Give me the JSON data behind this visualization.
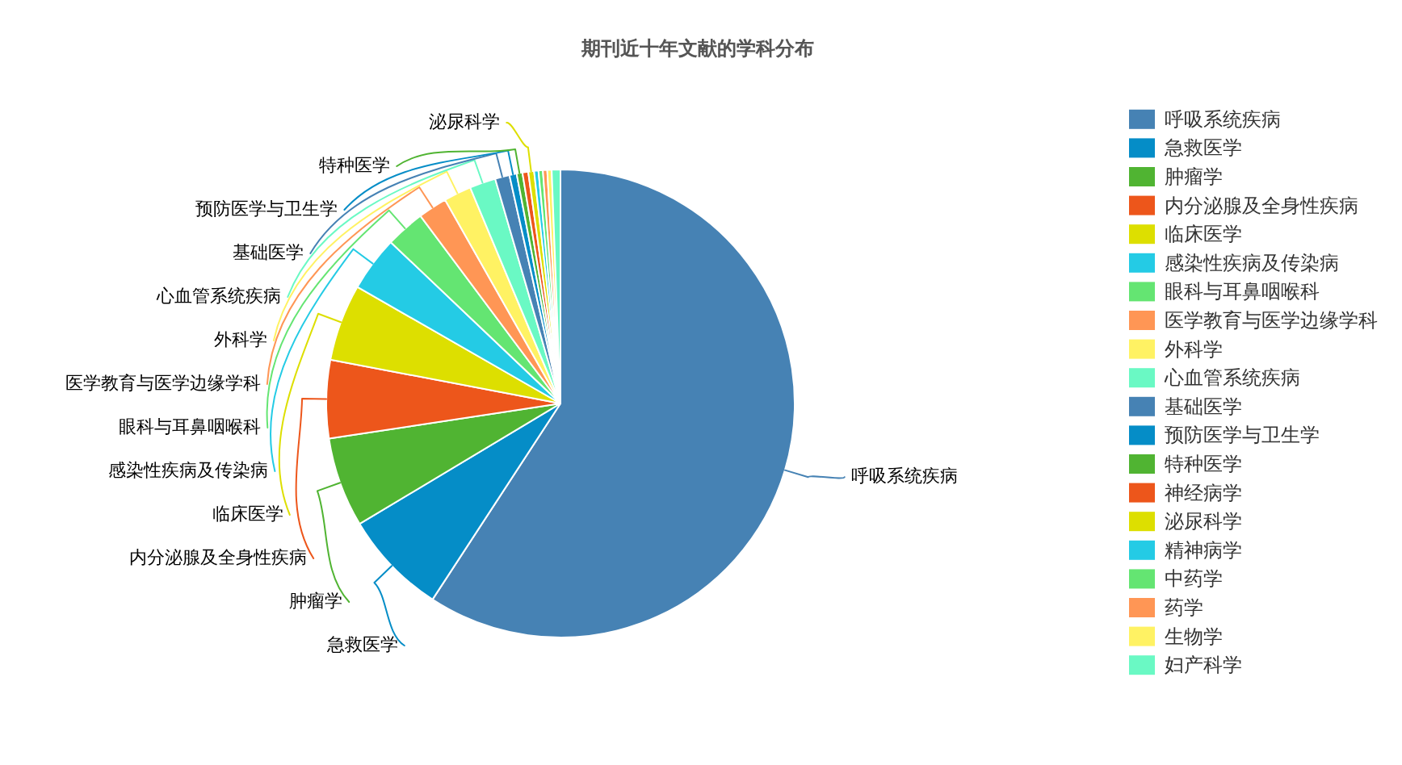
{
  "chart_data": {
    "type": "pie",
    "title": "期刊近十年文献的学科分布",
    "categories": [
      "呼吸系统疾病",
      "急救医学",
      "肿瘤学",
      "内分泌腺及全身性疾病",
      "临床医学",
      "感染性疾病及传染病",
      "眼科与耳鼻咽喉科",
      "医学教育与医学边缘学科",
      "外科学",
      "心血管系统疾病",
      "基础医学",
      "预防医学与卫生学",
      "特种医学",
      "神经病学",
      "泌尿科学",
      "精神病学",
      "中药学",
      "药学",
      "生物学",
      "妇产科学"
    ],
    "values": [
      59.2,
      7.2,
      6.2,
      5.4,
      5.3,
      3.8,
      2.7,
      2.0,
      1.9,
      1.8,
      1.0,
      0.5,
      0.4,
      0.4,
      0.4,
      0.3,
      0.3,
      0.3,
      0.3,
      0.6
    ],
    "colors": [
      "#4682b4",
      "#058dc7",
      "#50b432",
      "#ed561b",
      "#dddf00",
      "#24cbe5",
      "#64e572",
      "#ff9655",
      "#fff263",
      "#6af9c4",
      "#4682b4",
      "#058dc7",
      "#50b432",
      "#ed561b",
      "#dddf00",
      "#24cbe5",
      "#64e572",
      "#ff9655",
      "#fff263",
      "#6af9c4"
    ],
    "value_labels": [
      "呼吸系统疾病",
      "急救医学",
      "肿瘤学",
      "内分泌腺及全身性疾病",
      "临床医学",
      "感染性疾病及传染病",
      "眼科与耳鼻咽喉科",
      "医学教育与医学边缘学科",
      "外科学",
      "心血管系统疾病",
      "基础医学",
      "预防医学与卫生学",
      "特种医学",
      null,
      "泌尿科学",
      null,
      null,
      null,
      null,
      null
    ],
    "legend": "right"
  }
}
